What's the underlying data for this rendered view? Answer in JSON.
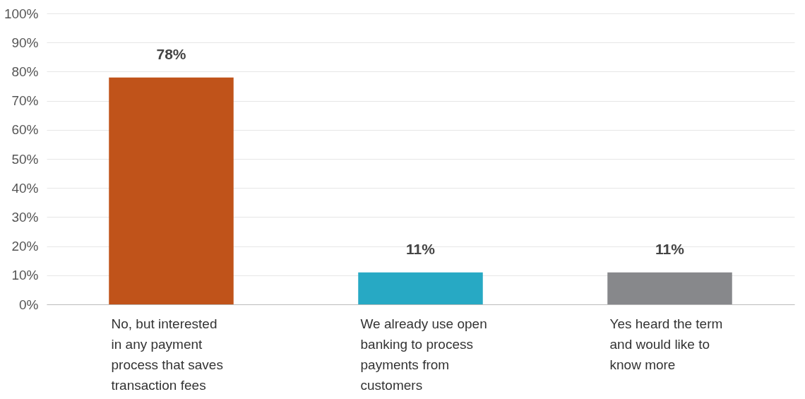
{
  "chart_data": {
    "type": "bar",
    "categories": [
      "No, but interested in any payment process that saves transaction fees",
      "We already use open banking to process payments from customers",
      "Yes heard the term and would like to know more"
    ],
    "values": [
      78,
      11,
      11
    ],
    "colors": [
      "#c0531a",
      "#27a9c4",
      "#87888b"
    ],
    "value_labels": [
      "78%",
      "11%",
      "11%"
    ],
    "ylim": [
      0,
      100
    ],
    "yticks": [
      {
        "value": 0,
        "label": "0%"
      },
      {
        "value": 10,
        "label": "10%"
      },
      {
        "value": 20,
        "label": "20%"
      },
      {
        "value": 30,
        "label": "30%"
      },
      {
        "value": 40,
        "label": "40%"
      },
      {
        "value": 50,
        "label": "50%"
      },
      {
        "value": 60,
        "label": "60%"
      },
      {
        "value": 70,
        "label": "70%"
      },
      {
        "value": 80,
        "label": "80%"
      },
      {
        "value": 90,
        "label": "90%"
      },
      {
        "value": 100,
        "label": "100%"
      }
    ],
    "grid": "y"
  }
}
